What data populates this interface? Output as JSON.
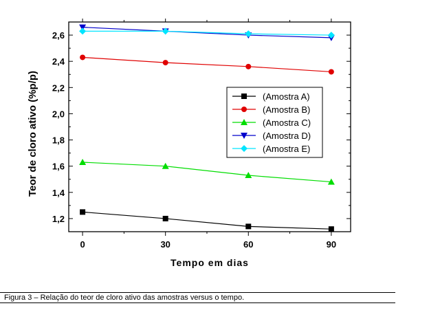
{
  "chart_data": {
    "type": "line",
    "title": "",
    "xlabel": "Tempo em dias",
    "ylabel": "Teor de cloro ativo (%p/p)",
    "x": [
      0,
      30,
      60,
      90
    ],
    "x_ticks": [
      "0",
      "30",
      "60",
      "90"
    ],
    "y_ticks": [
      "1,2",
      "1,4",
      "1,6",
      "1,8",
      "2,0",
      "2,2",
      "2,4",
      "2,6"
    ],
    "xlim": [
      -5,
      97
    ],
    "ylim": [
      1.1,
      2.7
    ],
    "grid": false,
    "legend_position": "right",
    "series": [
      {
        "name": "(Amostra A)",
        "values": [
          1.25,
          1.2,
          1.14,
          1.12
        ],
        "color": "#000000",
        "marker": "square"
      },
      {
        "name": "(Amostra B)",
        "values": [
          2.43,
          2.39,
          2.36,
          2.32
        ],
        "color": "#e00000",
        "marker": "circle"
      },
      {
        "name": "(Amostra C)",
        "values": [
          1.63,
          1.6,
          1.53,
          1.48
        ],
        "color": "#00dd00",
        "marker": "triangle-up"
      },
      {
        "name": "(Amostra D)",
        "values": [
          2.66,
          2.63,
          2.6,
          2.58
        ],
        "color": "#0000cc",
        "marker": "triangle-down"
      },
      {
        "name": "(Amostra E)",
        "values": [
          2.63,
          2.63,
          2.61,
          2.6
        ],
        "color": "#00e5ff",
        "marker": "diamond"
      }
    ]
  },
  "caption": "Figura 3 – Relação do teor de cloro ativo das amostras versus o tempo."
}
